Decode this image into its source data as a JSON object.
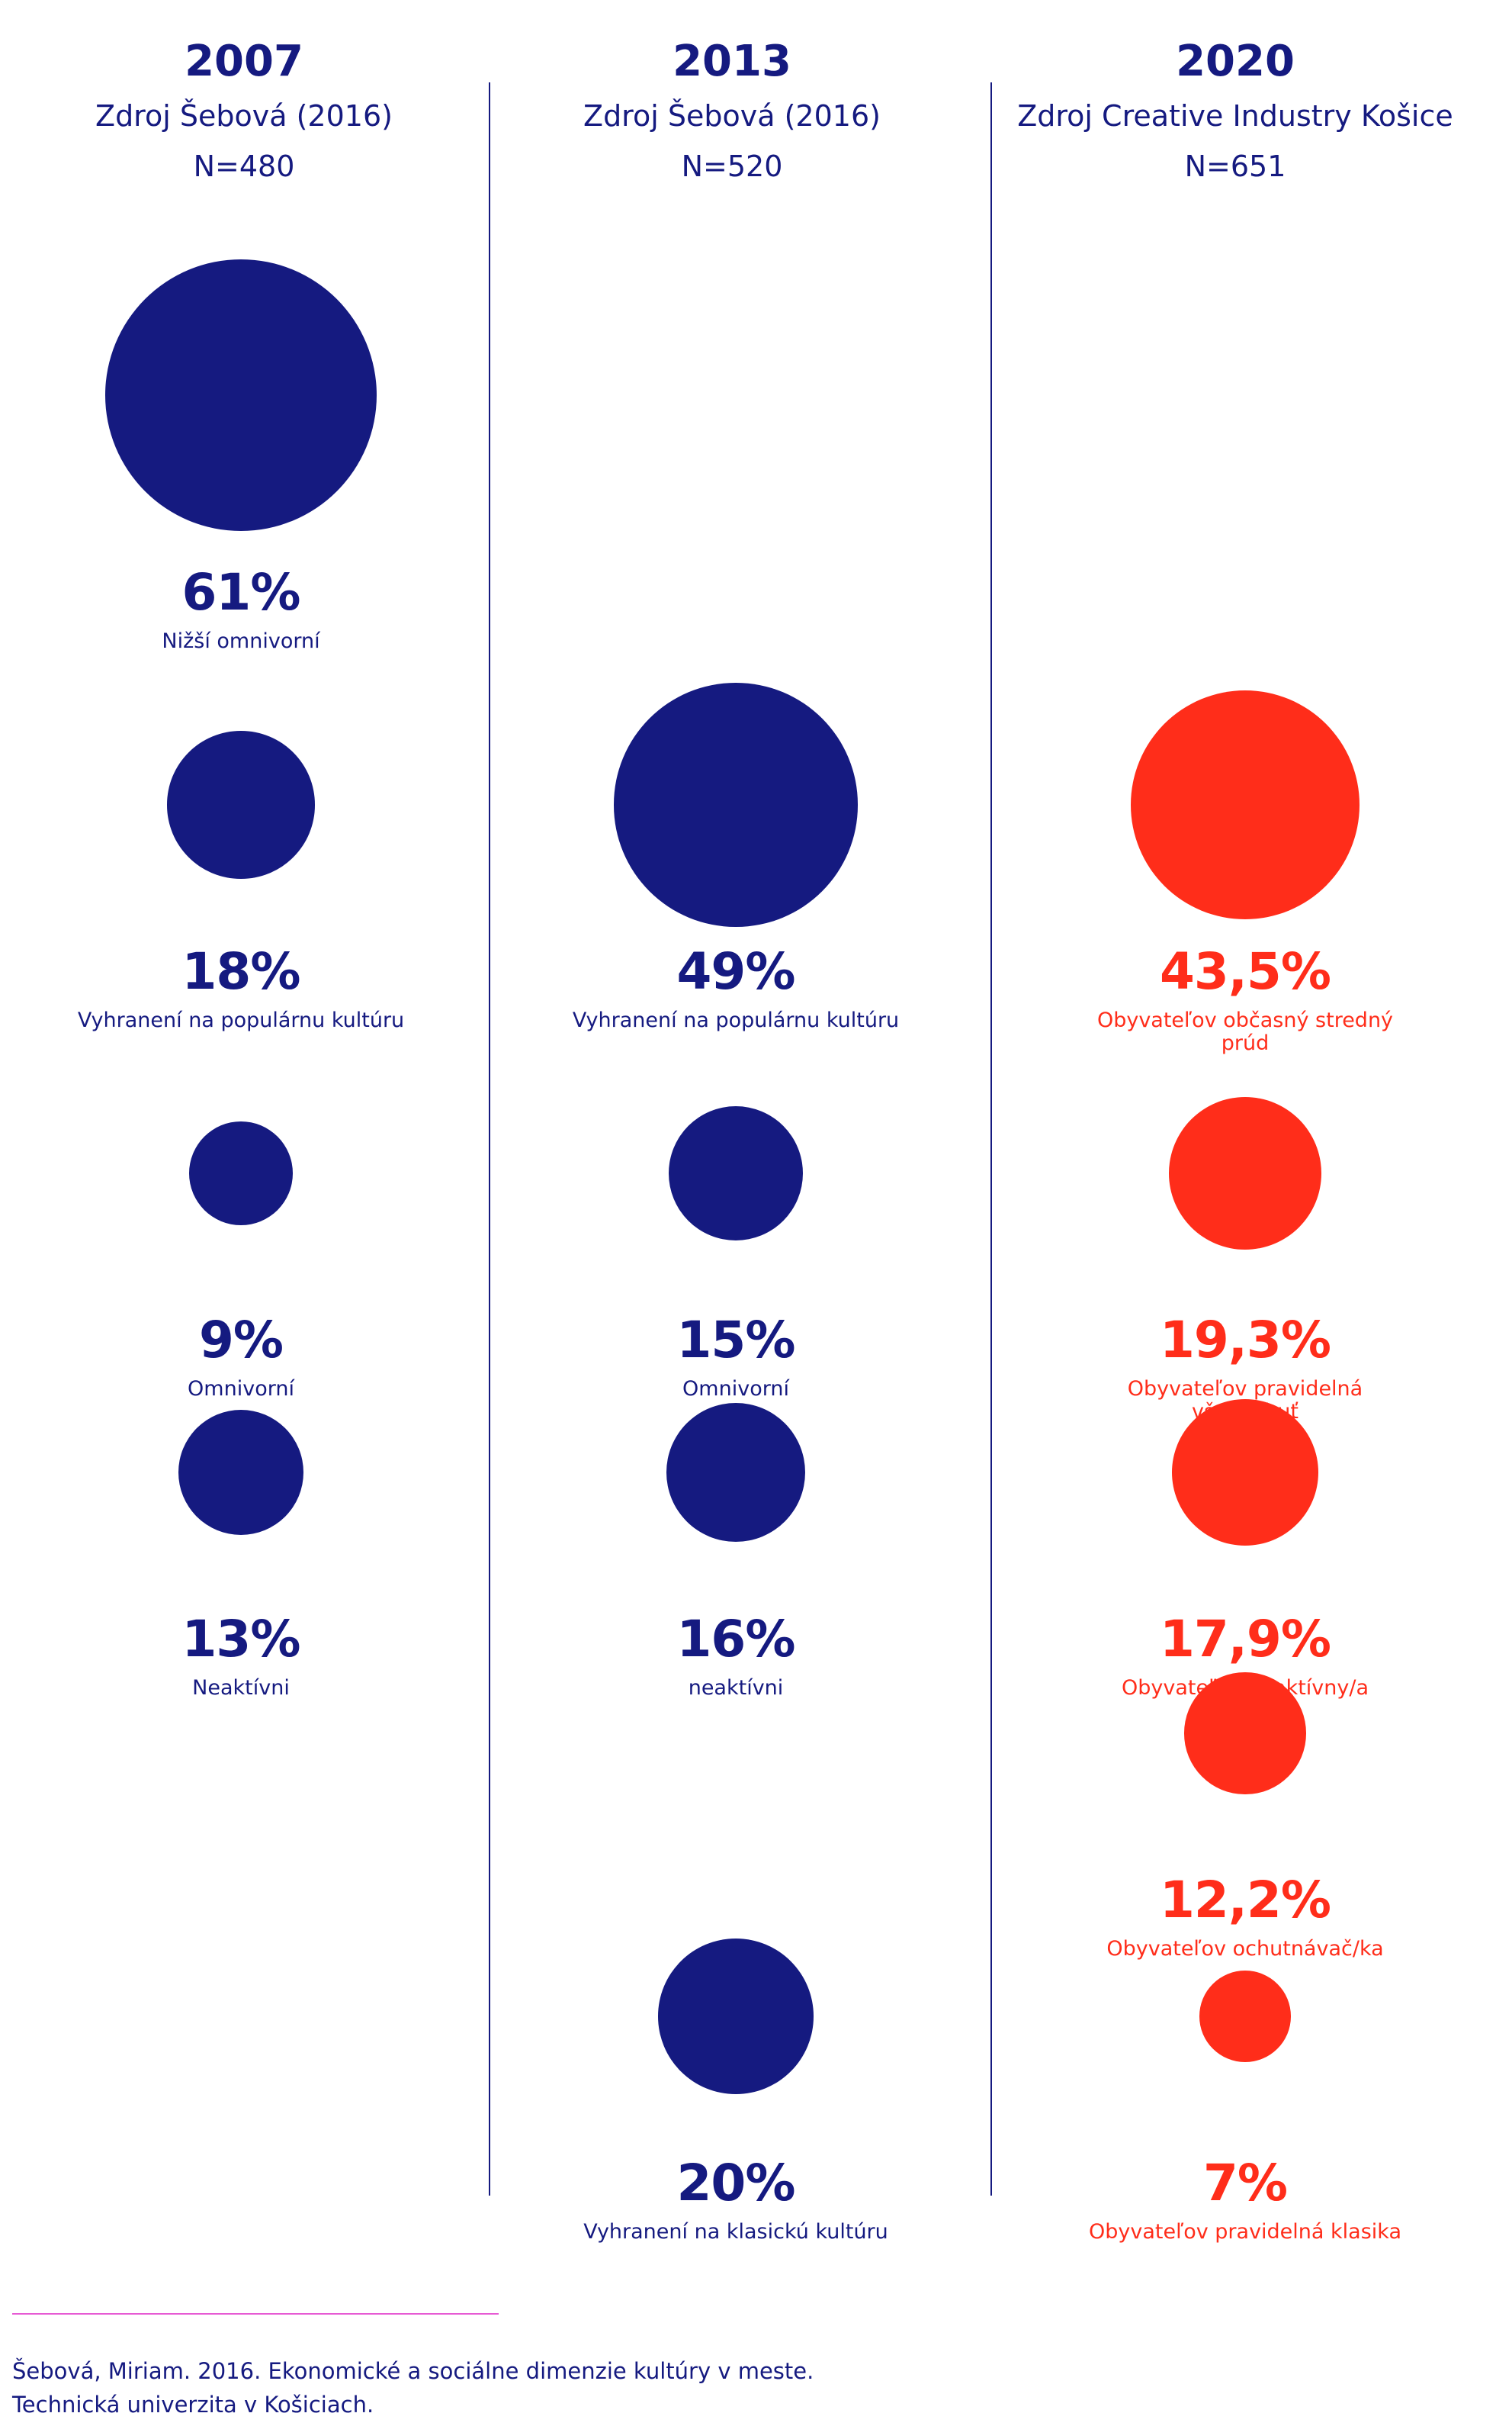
{
  "colors": {
    "navy": "#151a80",
    "red": "#ff2d1a",
    "pink_rule": "#e75ad4"
  },
  "columns": [
    {
      "year": "2007",
      "source": "Zdroj Šebová (2016)",
      "n": "N=480",
      "color": "navy"
    },
    {
      "year": "2013",
      "source": "Zdroj Šebová (2016)",
      "n": "N=520",
      "color": "navy"
    },
    {
      "year": "2020",
      "source": "Zdroj Creative Industry Košice",
      "n": "N=651",
      "color": "red"
    }
  ],
  "chart_data": {
    "type": "bubble",
    "series": [
      {
        "name": "2007",
        "items": [
          {
            "value": 61,
            "display": "61%",
            "label": "Nižší omnivorní"
          },
          {
            "value": 18,
            "display": "18%",
            "label": "Vyhranení na populárnu kultúru"
          },
          {
            "value": 9,
            "display": "9%",
            "label": "Omnivorní"
          },
          {
            "value": 13,
            "display": "13%",
            "label": "Neaktívni"
          }
        ]
      },
      {
        "name": "2013",
        "items": [
          {
            "value": 49,
            "display": "49%",
            "label": "Vyhranení na populárnu kultúru"
          },
          {
            "value": 15,
            "display": "15%",
            "label": "Omnivorní"
          },
          {
            "value": 16,
            "display": "16%",
            "label": "neaktívni"
          },
          {
            "value": 20,
            "display": "20%",
            "label": "Vyhranení na klasickú kultúru"
          }
        ]
      },
      {
        "name": "2020",
        "items": [
          {
            "value": 43.5,
            "display": "43,5%",
            "label": "Obyvateľov občasný stredný prúd"
          },
          {
            "value": 19.3,
            "display": "19,3%",
            "label": "Obyvateľov pravidelná všehochuť"
          },
          {
            "value": 17.9,
            "display": "17,9%",
            "label": "Obyvateľov neaktívny/a"
          },
          {
            "value": 12.2,
            "display": "12,2%",
            "label": "Obyvateľov ochutnávač/ka"
          },
          {
            "value": 7,
            "display": "7%",
            "label": "Obyvateľov pravidelná klasika"
          }
        ]
      }
    ]
  },
  "footnote": {
    "line1": "Šebová, Miriam. 2016. Ekonomické a sociálne dimenzie kultúry v meste.",
    "line2": "Technická univerzita v Košiciach."
  }
}
